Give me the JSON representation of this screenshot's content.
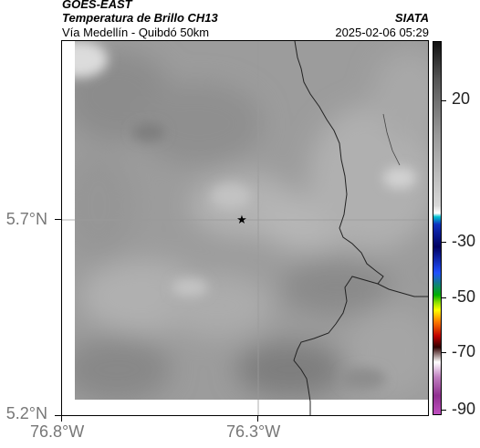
{
  "header": {
    "satellite": "GOES-EAST",
    "product": "Temperatura de Brillo CH13",
    "route": "Vía Medellín - Quibdó 50km",
    "agency": "SIATA",
    "timestamp": "2025-02-06 05:29"
  },
  "axes": {
    "y_labels": [
      "5.7°N",
      "5.2°N"
    ],
    "x_labels": [
      "76.8°W",
      "76.3°W"
    ]
  },
  "colorbar": {
    "labels": [
      "20",
      "-30",
      "-50",
      "-70",
      "-90"
    ]
  },
  "marker": {
    "symbol": "★"
  },
  "colors": {
    "frame": "#000000",
    "grid": "#9a9a9a",
    "border_line": "#222222"
  }
}
